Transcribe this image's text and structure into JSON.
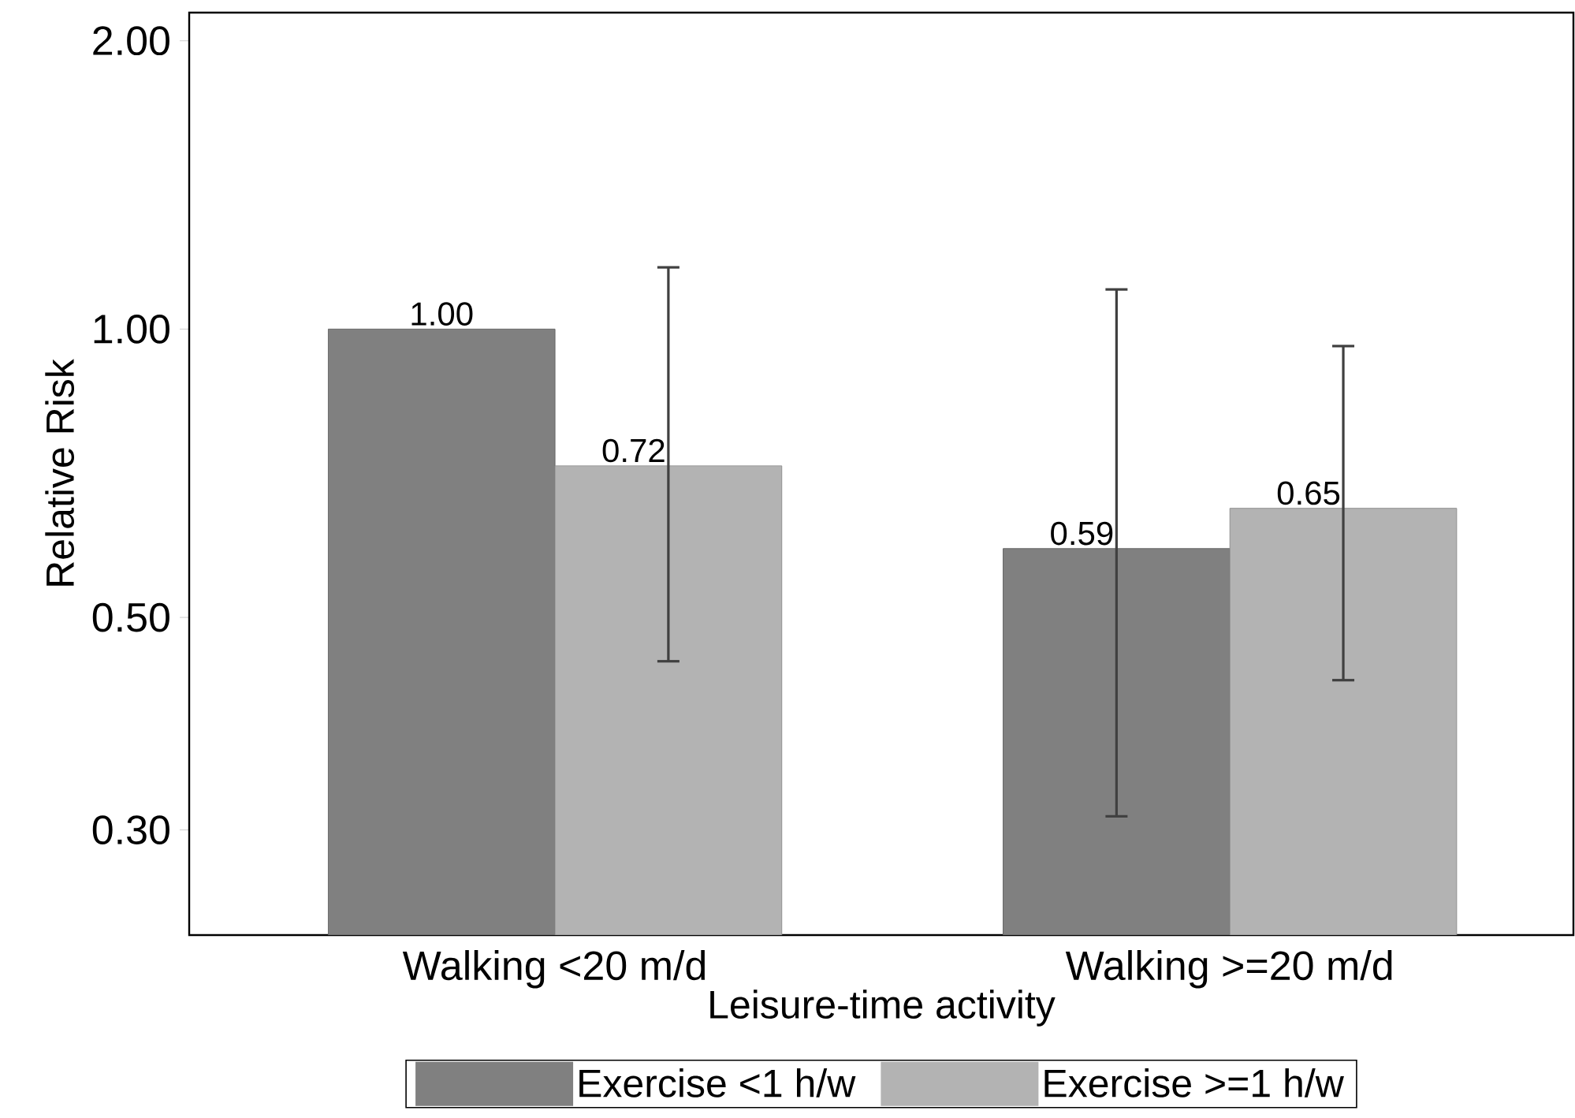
{
  "chart_data": {
    "type": "bar",
    "xlabel": "Leisure-time activity",
    "ylabel": "Relative Risk",
    "log": "y",
    "categories": [
      "Walking <20 m/d",
      "Walking >=20 m/d"
    ],
    "series": [
      {
        "name": "Exercise <1 h/w",
        "color": "#808080",
        "values": [
          1.0,
          0.59
        ],
        "value_labels": [
          "1.00",
          "0.59"
        ],
        "errors": [
          null,
          [
            0.31,
            1.1
          ]
        ]
      },
      {
        "name": "Exercise >=1 h/w",
        "color": "#b3b3b3",
        "values": [
          0.72,
          0.65
        ],
        "value_labels": [
          "0.72",
          "0.65"
        ],
        "errors": [
          [
            0.45,
            1.16
          ],
          [
            0.43,
            0.96
          ]
        ]
      }
    ],
    "ylim": [
      0.233,
      2.14
    ],
    "yticks": [
      {
        "value": 0.3,
        "label": "0.30"
      },
      {
        "value": 0.5,
        "label": "0.50"
      },
      {
        "value": 1,
        "label": "1.00"
      },
      {
        "value": 2,
        "label": "2.00"
      }
    ],
    "grid": false,
    "legend": "bottom"
  }
}
